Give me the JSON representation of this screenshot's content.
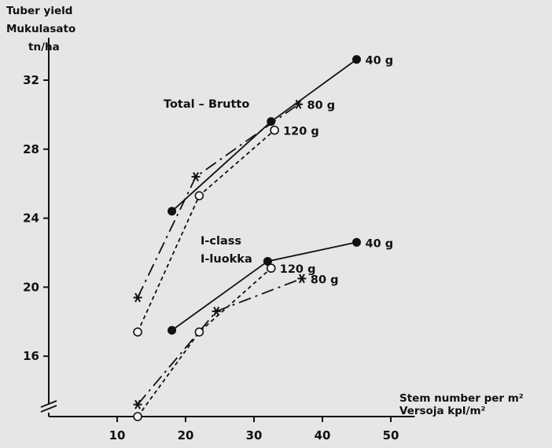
{
  "chart_data": {
    "type": "line",
    "title": "",
    "ylabel": [
      "Tuber yield",
      "Mukulasato",
      "tn/ha"
    ],
    "xlabel": [
      "Stem number per m²",
      "Versoja kpl/m²"
    ],
    "xlim": [
      0,
      50
    ],
    "ylim": [
      12.5,
      34
    ],
    "xticks": [
      10,
      20,
      30,
      40,
      50
    ],
    "yticks": [
      16,
      20,
      24,
      28,
      32
    ],
    "y_axis_break": true,
    "grid": false,
    "annotations": [
      "Total – Brutto",
      "I-class",
      "I-luokka"
    ],
    "groups": [
      {
        "label": "Total – Brutto",
        "series": [
          {
            "name": "40 g",
            "marker": "filled-circle",
            "line": "solid",
            "x": [
              18,
              32.5,
              45
            ],
            "y": [
              24.4,
              29.6,
              33.2
            ]
          },
          {
            "name": "80 g",
            "marker": "star",
            "line": "dashed",
            "x": [
              13,
              21.5,
              36.5
            ],
            "y": [
              19.4,
              26.4,
              30.6
            ]
          },
          {
            "name": "120 g",
            "marker": "open-circle",
            "line": "short-dashed",
            "x": [
              13,
              22,
              33
            ],
            "y": [
              17.4,
              25.3,
              29.1
            ]
          }
        ]
      },
      {
        "label": "I-class / I-luokka",
        "series": [
          {
            "name": "40 g",
            "marker": "filled-circle",
            "line": "solid",
            "x": [
              18,
              32,
              45
            ],
            "y": [
              17.5,
              21.5,
              22.6
            ]
          },
          {
            "name": "80 g",
            "marker": "star",
            "line": "dashed",
            "x": [
              13,
              24.5,
              37
            ],
            "y": [
              13.2,
              18.6,
              20.5
            ]
          },
          {
            "name": "120 g",
            "marker": "open-circle",
            "line": "short-dashed",
            "x": [
              13,
              22,
              32.5
            ],
            "y": [
              12.5,
              17.4,
              21.1
            ]
          }
        ]
      }
    ]
  }
}
